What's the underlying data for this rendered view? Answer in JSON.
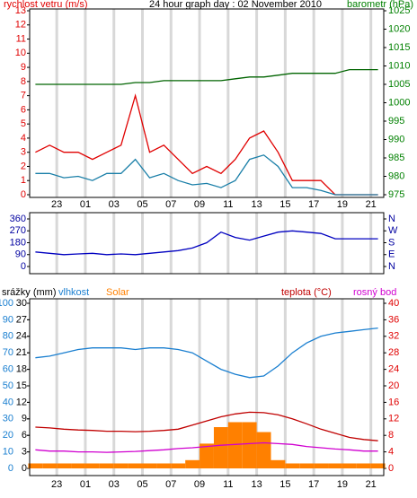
{
  "chart_data": [
    {
      "type": "line",
      "title": "24 hour graph day : 02 November 2010",
      "ylabel": "rychlost vetru (m/s)",
      "y2label": "barometr (hPa)",
      "x": [
        21.5,
        22.5,
        23.5,
        24.5,
        25.5,
        26.5,
        27.5,
        28.5,
        29.5,
        30.5,
        31.5,
        32.5,
        33.5,
        34.5,
        35.5,
        36.5,
        37.5,
        38.5,
        39.5,
        40.5,
        41.5,
        42.5,
        43.5,
        44.5,
        45.5
      ],
      "xlim": [
        21.1,
        45.9
      ],
      "xticks": [
        {
          "value": 23,
          "label": "23"
        },
        {
          "value": 25,
          "label": "01"
        },
        {
          "value": 27,
          "label": "03"
        },
        {
          "value": 29,
          "label": "05"
        },
        {
          "value": 31,
          "label": "07"
        },
        {
          "value": 33,
          "label": "09"
        },
        {
          "value": 35,
          "label": "11"
        },
        {
          "value": 37,
          "label": "13"
        },
        {
          "value": 39,
          "label": "15"
        },
        {
          "value": 41,
          "label": "17"
        },
        {
          "value": 43,
          "label": "19"
        },
        {
          "value": 45,
          "label": "21"
        }
      ],
      "ylim": [
        0,
        13
      ],
      "yticks": [
        0,
        1,
        2,
        3,
        4,
        5,
        6,
        7,
        8,
        9,
        10,
        11,
        12,
        13
      ],
      "y2lim": [
        975,
        1025
      ],
      "y2ticks": [
        975,
        980,
        985,
        990,
        995,
        1000,
        1005,
        1010,
        1015,
        1020,
        1025
      ],
      "ytick_color": "#e00000",
      "y2tick_color": "#008000",
      "grid": true,
      "series": [
        {
          "color": "#e00000",
          "values": [
            3,
            3.5,
            3,
            3,
            2.5,
            3,
            3.5,
            7,
            3,
            3.5,
            2.5,
            1.5,
            2,
            1.5,
            2.5,
            4,
            4.5,
            3,
            1,
            1,
            1,
            0,
            0,
            0,
            0
          ]
        },
        {
          "color": "#1a7fa8",
          "values": [
            1.5,
            1.5,
            1.2,
            1.3,
            1,
            1.5,
            1.5,
            2.5,
            1.2,
            1.5,
            1,
            0.7,
            0.8,
            0.5,
            1,
            2.5,
            2.8,
            2,
            0.5,
            0.5,
            0.3,
            0,
            0,
            0,
            0
          ]
        },
        {
          "color": "#006400",
          "axis": "y2",
          "values": [
            1005,
            1005,
            1005,
            1005,
            1005,
            1005,
            1005,
            1005.5,
            1005.5,
            1006,
            1006,
            1006,
            1006,
            1006,
            1006.5,
            1007,
            1007,
            1007.5,
            1008,
            1008,
            1008,
            1008,
            1009,
            1009,
            1009
          ]
        }
      ]
    },
    {
      "type": "line",
      "x": [
        21.5,
        22.5,
        23.5,
        24.5,
        25.5,
        26.5,
        27.5,
        28.5,
        29.5,
        30.5,
        31.5,
        32.5,
        33.5,
        34.5,
        35.5,
        36.5,
        37.5,
        38.5,
        39.5,
        40.5,
        41.5,
        42.5,
        43.5,
        44.5,
        45.5
      ],
      "xlim": [
        21.1,
        45.9
      ],
      "xticks": [
        23,
        25,
        27,
        29,
        31,
        33,
        35,
        37,
        39,
        41,
        43,
        45
      ],
      "ylim": [
        0,
        360
      ],
      "yticks": [
        0,
        90,
        180,
        270,
        360
      ],
      "y2lim": [
        0,
        360
      ],
      "y2ticks": [
        {
          "value": 0,
          "label": "N"
        },
        {
          "value": 90,
          "label": "E"
        },
        {
          "value": 180,
          "label": "S"
        },
        {
          "value": 270,
          "label": "W"
        },
        {
          "value": 360,
          "label": "N"
        }
      ],
      "ytick_color": "#0000a0",
      "y2tick_color": "#0000a0",
      "grid": true,
      "series": [
        {
          "color": "#0000c0",
          "values": [
            110,
            100,
            90,
            95,
            100,
            90,
            95,
            90,
            100,
            110,
            120,
            140,
            180,
            260,
            220,
            200,
            230,
            260,
            270,
            260,
            250,
            210,
            210,
            210,
            210
          ]
        }
      ]
    },
    {
      "type": "line",
      "x": [
        21.5,
        22.5,
        23.5,
        24.5,
        25.5,
        26.5,
        27.5,
        28.5,
        29.5,
        30.5,
        31.5,
        32.5,
        33.5,
        34.5,
        35.5,
        36.5,
        37.5,
        38.5,
        39.5,
        40.5,
        41.5,
        42.5,
        43.5,
        44.5,
        45.5
      ],
      "xlim": [
        21.1,
        45.9
      ],
      "xticks": [
        {
          "value": 23,
          "label": "23"
        },
        {
          "value": 25,
          "label": "01"
        },
        {
          "value": 27,
          "label": "03"
        },
        {
          "value": 29,
          "label": "05"
        },
        {
          "value": 31,
          "label": "07"
        },
        {
          "value": 33,
          "label": "09"
        },
        {
          "value": 35,
          "label": "11"
        },
        {
          "value": 37,
          "label": "13"
        },
        {
          "value": 39,
          "label": "15"
        },
        {
          "value": 41,
          "label": "17"
        },
        {
          "value": 43,
          "label": "19"
        },
        {
          "value": 45,
          "label": "21"
        }
      ],
      "y3label": "srážky (mm)",
      "ylim": [
        0,
        100
      ],
      "yticks": [
        0,
        10,
        20,
        30,
        40,
        50,
        60,
        70,
        80,
        90,
        100
      ],
      "y3lim": [
        0,
        30
      ],
      "y3ticks": [
        0,
        3,
        6,
        9,
        12,
        15,
        18,
        21,
        24,
        27,
        30
      ],
      "y2lim": [
        0,
        40
      ],
      "y2ticks": [
        0,
        4,
        8,
        12,
        16,
        20,
        24,
        28,
        32,
        36,
        40
      ],
      "ytick_color": "#1a7fd0",
      "y3tick_color": "#000000",
      "y2tick_color": "#e00000",
      "grid": true,
      "series": [
        {
          "name": "vlhkost",
          "color": "#1a7fd0",
          "values": [
            67,
            68,
            70,
            72,
            73,
            73,
            73,
            72,
            73,
            73,
            72,
            70,
            65,
            60,
            57,
            55,
            56,
            62,
            70,
            76,
            80,
            82,
            83,
            84,
            85
          ]
        },
        {
          "name": "Solar",
          "color": "#ff8000",
          "style": "bar",
          "values": [
            3,
            3,
            3,
            3,
            3,
            3,
            3,
            3,
            3,
            3,
            3,
            5,
            15,
            25,
            28,
            28,
            22,
            5,
            3,
            3,
            3,
            3,
            3,
            3,
            3
          ]
        },
        {
          "name": "teplota (°C)",
          "color": "#c00000",
          "axis": "y2",
          "values": [
            10,
            9.8,
            9.5,
            9.3,
            9.2,
            9,
            9,
            8.9,
            9,
            9.2,
            9.5,
            10.5,
            11.5,
            12.5,
            13.2,
            13.6,
            13.5,
            13,
            12,
            10.8,
            9.5,
            8.5,
            7.5,
            7,
            6.7
          ]
        },
        {
          "name": "rosný bod",
          "color": "#d000d0",
          "axis": "y2",
          "values": [
            4.5,
            4.2,
            4.2,
            4,
            4,
            3.9,
            4,
            4.1,
            4.3,
            4.5,
            4.8,
            5,
            5.3,
            5.6,
            5.8,
            6,
            6.2,
            6,
            5.8,
            5.3,
            5,
            4.7,
            4.5,
            4.2,
            4.2
          ]
        }
      ]
    }
  ]
}
